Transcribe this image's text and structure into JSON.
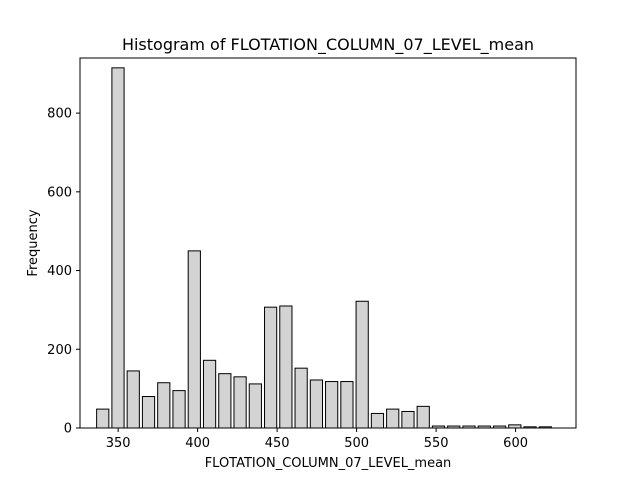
{
  "chart_data": {
    "type": "bar",
    "title": "Histogram of FLOTATION_COLUMN_07_LEVEL_mean",
    "xlabel": "FLOTATION_COLUMN_07_LEVEL_mean",
    "ylabel": "Frequency",
    "xlim": [
      326,
      638
    ],
    "ylim": [
      0,
      940
    ],
    "x_ticks": [
      350,
      400,
      450,
      500,
      550,
      600
    ],
    "y_ticks": [
      0,
      200,
      400,
      600,
      800
    ],
    "grid": false,
    "legend": "none",
    "bar_color": "#d3d3d3",
    "edge_color": "#000000",
    "bins": [
      {
        "x0": 335.5,
        "x1": 345.1,
        "value": 48
      },
      {
        "x0": 345.1,
        "x1": 354.7,
        "value": 915
      },
      {
        "x0": 354.7,
        "x1": 364.3,
        "value": 145
      },
      {
        "x0": 364.3,
        "x1": 373.9,
        "value": 80
      },
      {
        "x0": 373.9,
        "x1": 383.5,
        "value": 115
      },
      {
        "x0": 383.5,
        "x1": 393.1,
        "value": 95
      },
      {
        "x0": 393.1,
        "x1": 402.7,
        "value": 450
      },
      {
        "x0": 402.7,
        "x1": 412.3,
        "value": 172
      },
      {
        "x0": 412.3,
        "x1": 421.9,
        "value": 138
      },
      {
        "x0": 421.9,
        "x1": 431.5,
        "value": 130
      },
      {
        "x0": 431.5,
        "x1": 441.1,
        "value": 112
      },
      {
        "x0": 441.1,
        "x1": 450.7,
        "value": 307
      },
      {
        "x0": 450.7,
        "x1": 460.3,
        "value": 310
      },
      {
        "x0": 460.3,
        "x1": 469.9,
        "value": 152
      },
      {
        "x0": 469.9,
        "x1": 479.5,
        "value": 122
      },
      {
        "x0": 479.5,
        "x1": 489.1,
        "value": 118
      },
      {
        "x0": 489.1,
        "x1": 498.7,
        "value": 118
      },
      {
        "x0": 498.7,
        "x1": 508.3,
        "value": 322
      },
      {
        "x0": 508.3,
        "x1": 517.9,
        "value": 37
      },
      {
        "x0": 517.9,
        "x1": 527.5,
        "value": 48
      },
      {
        "x0": 527.5,
        "x1": 537.1,
        "value": 42
      },
      {
        "x0": 537.1,
        "x1": 546.7,
        "value": 55
      },
      {
        "x0": 546.7,
        "x1": 556.3,
        "value": 5
      },
      {
        "x0": 556.3,
        "x1": 565.9,
        "value": 5
      },
      {
        "x0": 565.9,
        "x1": 575.5,
        "value": 5
      },
      {
        "x0": 575.5,
        "x1": 585.1,
        "value": 5
      },
      {
        "x0": 585.1,
        "x1": 594.7,
        "value": 5
      },
      {
        "x0": 594.7,
        "x1": 604.3,
        "value": 8
      },
      {
        "x0": 604.3,
        "x1": 613.9,
        "value": 3
      },
      {
        "x0": 613.9,
        "x1": 623.5,
        "value": 3
      }
    ]
  }
}
